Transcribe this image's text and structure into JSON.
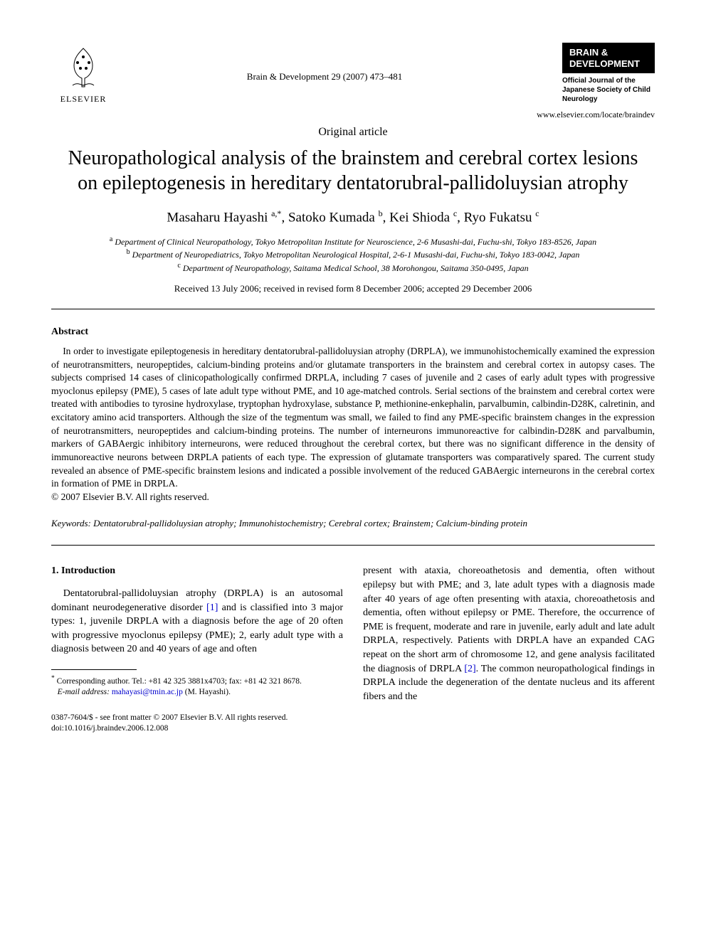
{
  "header": {
    "publisher_name": "ELSEVIER",
    "journal_reference": "Brain & Development 29 (2007) 473–481",
    "journal_badge_line1": "BRAIN &",
    "journal_badge_line2": "DEVELOPMENT",
    "journal_sub": "Official Journal of the Japanese Society of Child Neurology",
    "journal_url": "www.elsevier.com/locate/braindev"
  },
  "article_type": "Original article",
  "title": "Neuropathological analysis of the brainstem and cerebral cortex lesions on epileptogenesis in hereditary dentatorubral-pallidoluysian atrophy",
  "authors_html": "Masaharu Hayashi <sup>a,*</sup>, Satoko Kumada <sup>b</sup>, Kei Shioda <sup>c</sup>, Ryo Fukatsu <sup>c</sup>",
  "affiliations": {
    "a": "Department of Clinical Neuropathology, Tokyo Metropolitan Institute for Neuroscience, 2-6 Musashi-dai, Fuchu-shi, Tokyo 183-8526, Japan",
    "b": "Department of Neuropediatrics, Tokyo Metropolitan Neurological Hospital, 2-6-1 Musashi-dai, Fuchu-shi, Tokyo 183-0042, Japan",
    "c": "Department of Neuropathology, Saitama Medical School, 38 Morohongou, Saitama 350-0495, Japan"
  },
  "dates": "Received 13 July 2006; received in revised form 8 December 2006; accepted 29 December 2006",
  "abstract": {
    "heading": "Abstract",
    "body": "In order to investigate epileptogenesis in hereditary dentatorubral-pallidoluysian atrophy (DRPLA), we immunohistochemically examined the expression of neurotransmitters, neuropeptides, calcium-binding proteins and/or glutamate transporters in the brainstem and cerebral cortex in autopsy cases. The subjects comprised 14 cases of clinicopathologically confirmed DRPLA, including 7 cases of juvenile and 2 cases of early adult types with progressive myoclonus epilepsy (PME), 5 cases of late adult type without PME, and 10 age-matched controls. Serial sections of the brainstem and cerebral cortex were treated with antibodies to tyrosine hydroxylase, tryptophan hydroxylase, substance P, methionine-enkephalin, parvalbumin, calbindin-D28K, calretinin, and excitatory amino acid transporters. Although the size of the tegmentum was small, we failed to find any PME-specific brainstem changes in the expression of neurotransmitters, neuropeptides and calcium-binding proteins. The number of interneurons immunoreactive for calbindin-D28K and parvalbumin, markers of GABAergic inhibitory interneurons, were reduced throughout the cerebral cortex, but there was no significant difference in the density of immunoreactive neurons between DRPLA patients of each type. The expression of glutamate transporters was comparatively spared. The current study revealed an absence of PME-specific brainstem lesions and indicated a possible involvement of the reduced GABAergic interneurons in the cerebral cortex in formation of PME in DRPLA.",
    "copyright": "© 2007 Elsevier B.V. All rights reserved."
  },
  "keywords": {
    "label": "Keywords:",
    "text": "Dentatorubral-pallidoluysian atrophy; Immunohistochemistry; Cerebral cortex; Brainstem; Calcium-binding protein"
  },
  "introduction": {
    "heading": "1. Introduction",
    "col1_pre": "Dentatorubral-pallidoluysian atrophy (DRPLA) is an autosomal dominant neurodegenerative disorder ",
    "ref1": "[1]",
    "col1_post": " and is classified into 3 major types: 1, juvenile DRPLA with a diagnosis before the age of 20 often with progressive myoclonus epilepsy (PME); 2, early adult type with a diagnosis between 20 and 40 years of age and often",
    "col2_pre": "present with ataxia, choreoathetosis and dementia, often without epilepsy but with PME; and 3, late adult types with a diagnosis made after 40 years of age often presenting with ataxia, choreoathetosis and dementia, often without epilepsy or PME. Therefore, the occurrence of PME is frequent, moderate and rare in juvenile, early adult and late adult DRPLA, respectively. Patients with DRPLA have an expanded CAG repeat on the short arm of chromosome 12, and gene analysis facilitated the diagnosis of DRPLA ",
    "ref2": "[2]",
    "col2_post": ". The common neuropathological findings in DRPLA include the degeneration of the dentate nucleus and its afferent fibers and the"
  },
  "footnotes": {
    "corr": "Corresponding author. Tel.: +81 42 325 3881x4703; fax: +81 42 321 8678.",
    "email_label": "E-mail address:",
    "email": "mahayasi@tmin.ac.jp",
    "email_name": "(M. Hayashi)."
  },
  "bottom": {
    "line1": "0387-7604/$ - see front matter © 2007 Elsevier B.V. All rights reserved.",
    "line2": "doi:10.1016/j.braindev.2006.12.008"
  },
  "colors": {
    "text": "#000000",
    "background": "#ffffff",
    "link": "#0000cc",
    "badge_bg": "#000000",
    "badge_fg": "#ffffff"
  },
  "typography": {
    "body_font": "Times New Roman",
    "title_fontsize_pt": 21,
    "authors_fontsize_pt": 14,
    "body_fontsize_pt": 10,
    "abstract_fontsize_pt": 10
  }
}
